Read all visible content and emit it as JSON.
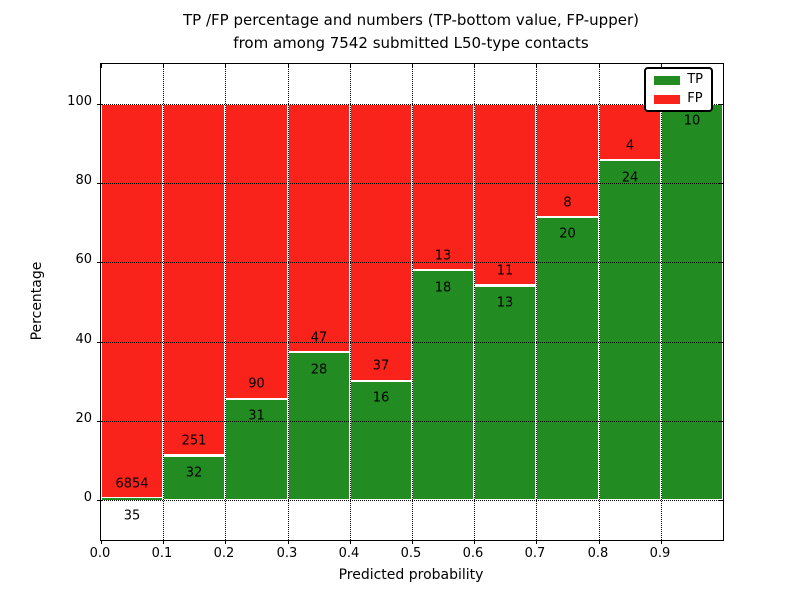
{
  "title": {
    "line1": "TP /FP percentage and numbers (TP-bottom value, FP-upper)",
    "line2": "from among 7542 submitted L50-type contacts"
  },
  "colors": {
    "tp_green": "#228b22",
    "fp_red": "#fa231c",
    "grid": "#000000",
    "background": "#ffffff",
    "text": "#000000"
  },
  "chart_data": {
    "type": "bar",
    "stacked": true,
    "title": "TP /FP percentage and numbers (TP-bottom value, FP-upper) from among 7542 submitted L50-type contacts",
    "xlabel": "Predicted probability",
    "ylabel": "Percentage",
    "xlim": [
      0.0,
      1.0
    ],
    "ylim": [
      -10,
      110
    ],
    "grid": "dotted",
    "grid_on": true,
    "legend_position": "upper right",
    "total_submitted": 7542,
    "x_tick_labels": [
      "0.0",
      "0.1",
      "0.2",
      "0.3",
      "0.4",
      "0.5",
      "0.6",
      "0.7",
      "0.8",
      "0.9"
    ],
    "y_tick_values": [
      0,
      20,
      40,
      60,
      80,
      100
    ],
    "y_tick_labels": [
      "0",
      "20",
      "40",
      "60",
      "80",
      "100"
    ],
    "categories": [
      "0.0-0.1",
      "0.1-0.2",
      "0.2-0.3",
      "0.3-0.4",
      "0.4-0.5",
      "0.5-0.6",
      "0.6-0.7",
      "0.7-0.8",
      "0.8-0.9",
      "0.9-1.0"
    ],
    "series": [
      {
        "name": "TP",
        "color": "#228b22",
        "counts": [
          35,
          32,
          31,
          28,
          16,
          18,
          13,
          20,
          24,
          10
        ],
        "pct": [
          0.51,
          11.31,
          25.62,
          37.33,
          30.19,
          58.06,
          54.17,
          71.43,
          85.71,
          100.0
        ]
      },
      {
        "name": "FP",
        "color": "#fa231c",
        "counts": [
          6854,
          251,
          90,
          47,
          37,
          13,
          11,
          8,
          4,
          0
        ],
        "pct": [
          99.49,
          88.69,
          74.38,
          62.67,
          69.81,
          41.94,
          45.83,
          28.57,
          14.29,
          0.0
        ]
      }
    ],
    "legend": [
      {
        "label": "TP",
        "color": "#228b22"
      },
      {
        "label": "FP",
        "color": "#fa231c"
      }
    ],
    "bars": [
      {
        "x0": 0.0,
        "tp_pct": 0.51,
        "tp_label": "35",
        "fp_label": "6854"
      },
      {
        "x0": 0.1,
        "tp_pct": 11.31,
        "tp_label": "32",
        "fp_label": "251"
      },
      {
        "x0": 0.2,
        "tp_pct": 25.62,
        "tp_label": "31",
        "fp_label": "90"
      },
      {
        "x0": 0.3,
        "tp_pct": 37.33,
        "tp_label": "28",
        "fp_label": "47"
      },
      {
        "x0": 0.4,
        "tp_pct": 30.19,
        "tp_label": "16",
        "fp_label": "37"
      },
      {
        "x0": 0.5,
        "tp_pct": 58.06,
        "tp_label": "18",
        "fp_label": "13"
      },
      {
        "x0": 0.6,
        "tp_pct": 54.17,
        "tp_label": "13",
        "fp_label": "11"
      },
      {
        "x0": 0.7,
        "tp_pct": 71.43,
        "tp_label": "20",
        "fp_label": "8"
      },
      {
        "x0": 0.8,
        "tp_pct": 85.71,
        "tp_label": "24",
        "fp_label": "4"
      },
      {
        "x0": 0.9,
        "tp_pct": 100.0,
        "tp_label": "10",
        "fp_label": ""
      }
    ]
  }
}
